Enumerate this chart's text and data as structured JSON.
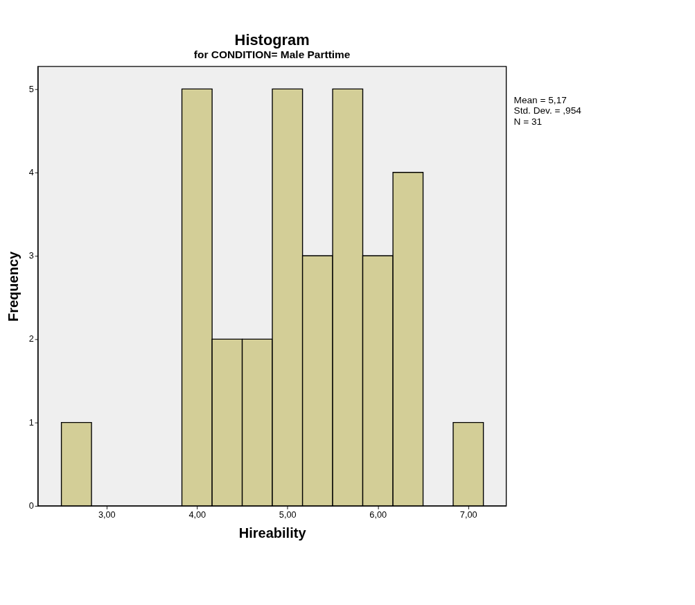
{
  "chart_data": {
    "type": "histogram",
    "title": "Histogram",
    "subtitle": "for CONDITION= Male Parttime",
    "xlabel": "Hireability",
    "ylabel": "Frequency",
    "bins": [
      2.5,
      2.833,
      3.167,
      3.5,
      3.833,
      4.167,
      4.5,
      4.833,
      5.167,
      5.5,
      5.833,
      6.167,
      6.5,
      6.833,
      7.167
    ],
    "values": [
      1,
      0,
      0,
      0,
      5,
      2,
      2,
      5,
      3,
      5,
      3,
      4,
      0,
      1
    ],
    "color": "#d3ce97",
    "xlim": [
      2.24,
      7.42
    ],
    "xticks": [
      {
        "value": 3,
        "label": "3,00"
      },
      {
        "value": 4,
        "label": "4,00"
      },
      {
        "value": 5,
        "label": "5,00"
      },
      {
        "value": 6,
        "label": "6,00"
      },
      {
        "value": 7,
        "label": "7,00"
      }
    ],
    "ylim": [
      0,
      5.27
    ],
    "yticks": [
      0,
      1,
      2,
      3,
      4,
      5
    ],
    "grid": false,
    "annotations": [
      "Mean = 5,17",
      "Std. Dev. = ,954",
      "N = 31"
    ]
  }
}
